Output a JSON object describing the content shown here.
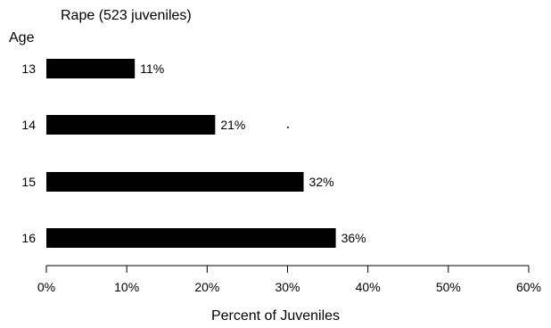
{
  "chart_data": {
    "type": "bar",
    "orientation": "horizontal",
    "title": "Rape    (523 juveniles)",
    "ylabel": "Age",
    "xlabel": "Percent of Juveniles",
    "categories": [
      "13",
      "14",
      "15",
      "16"
    ],
    "values": [
      11,
      21,
      32,
      36
    ],
    "value_labels": [
      "11%",
      "21%",
      "32%",
      "36%"
    ],
    "xlim": [
      0,
      60
    ],
    "xticks": [
      0,
      10,
      20,
      30,
      40,
      50,
      60
    ],
    "xtick_labels": [
      "0%",
      "10%",
      "20%",
      "30%",
      "40%",
      "50%",
      "60%"
    ],
    "grid": false,
    "bar_color": "#000000"
  }
}
